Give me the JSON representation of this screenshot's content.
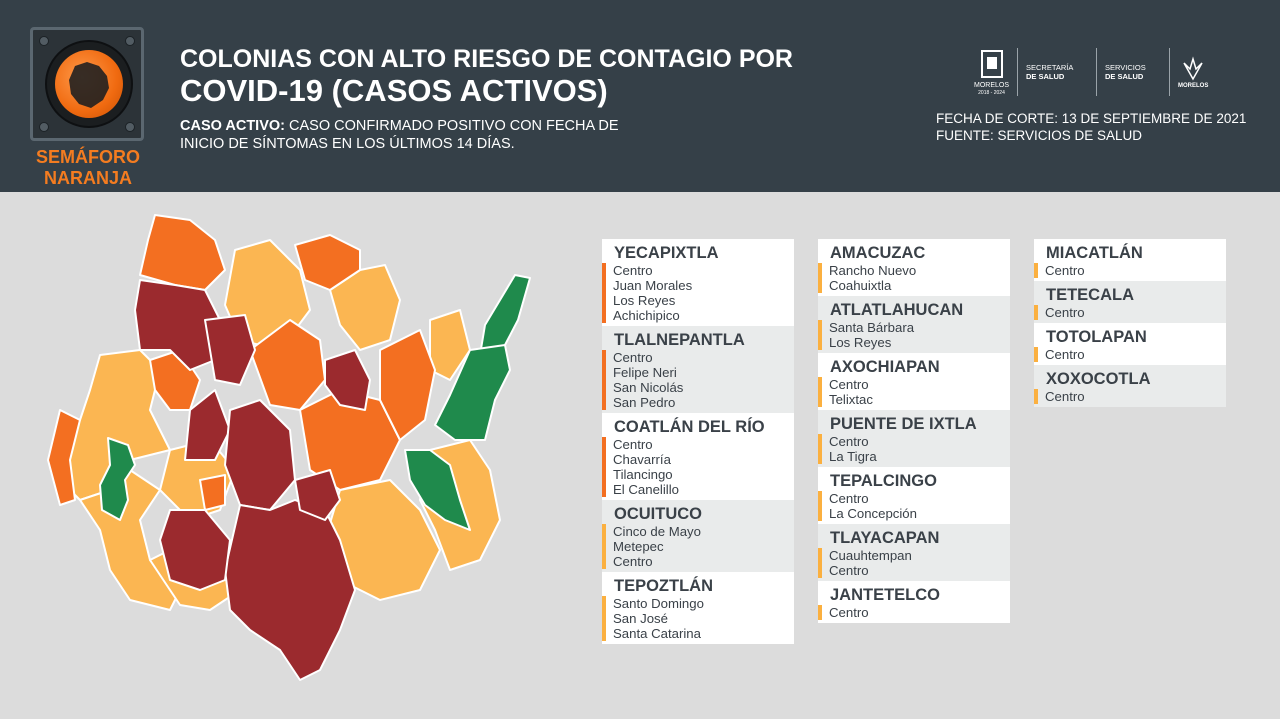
{
  "header": {
    "semaforo_label_1": "SEMÁFORO",
    "semaforo_label_2": "NARANJA",
    "title_line1": "COLONIAS CON ALTO RIESGO DE CONTAGIO POR",
    "title_line2": "COVID-19 (CASOS ACTIVOS)",
    "desc_bold": "CASO ACTIVO:",
    "desc_text_1": " CASO CONFIRMADO POSITIVO CON FECHA DE",
    "desc_text_2": "INICIO DE SÍNTOMAS EN LOS ÚLTIMOS 14 DÍAS.",
    "fecha": "FECHA DE CORTE: 13 DE SEPTIEMBRE DE 2021",
    "fuente": "FUENTE: SERVICIOS DE SALUD",
    "logos": {
      "morelos": "MORELOS",
      "morelos_years": "2018 - 2024",
      "secretaria_1": "SECRETARÍA",
      "secretaria_2": "DE SALUD",
      "servicios_1": "SERVICIOS",
      "servicios_2": "DE SALUD",
      "morelos2": "MORELOS"
    }
  },
  "colors": {
    "header_bg": "#354048",
    "semaforo_orange": "#f47c20",
    "map_dark_red": "#9b2a2e",
    "map_orange": "#f36f21",
    "map_yellow": "#fbb652",
    "map_green": "#1f8a4c"
  },
  "municipios_col1": [
    {
      "name": "YECAPIXTLA",
      "color": "orange",
      "colonias": [
        "Centro",
        "Juan Morales",
        "Los Reyes",
        "Achichipico"
      ]
    },
    {
      "name": "TLALNEPANTLA",
      "color": "orange",
      "colonias": [
        "Centro",
        "Felipe Neri",
        "San Nicolás",
        "San Pedro"
      ]
    },
    {
      "name": "COATLÁN DEL RÍO",
      "color": "orange",
      "colonias": [
        "Centro",
        "Chavarría",
        "Tilancingo",
        "El Canelillo"
      ]
    },
    {
      "name": "OCUITUCO",
      "color": "yellow",
      "colonias": [
        "Cinco de Mayo",
        "Metepec",
        "Centro"
      ]
    },
    {
      "name": "TEPOZTLÁN",
      "color": "yellow",
      "colonias": [
        "Santo Domingo",
        "San José",
        "Santa Catarina"
      ]
    }
  ],
  "municipios_col2": [
    {
      "name": "AMACUZAC",
      "color": "yellow",
      "colonias": [
        "Rancho Nuevo",
        "Coahuixtla"
      ]
    },
    {
      "name": "ATLATLAHUCAN",
      "color": "yellow",
      "colonias": [
        "Santa Bárbara",
        "Los Reyes"
      ]
    },
    {
      "name": "AXOCHIAPAN",
      "color": "yellow",
      "colonias": [
        "Centro",
        "Telixtac"
      ]
    },
    {
      "name": "PUENTE DE IXTLA",
      "color": "yellow",
      "colonias": [
        "Centro",
        "La Tigra"
      ]
    },
    {
      "name": "TEPALCINGO",
      "color": "yellow",
      "colonias": [
        "Centro",
        "La Concepción"
      ]
    },
    {
      "name": "TLAYACAPAN",
      "color": "yellow",
      "colonias": [
        "Cuauhtempan",
        "Centro"
      ]
    },
    {
      "name": "JANTETELCO",
      "color": "yellow",
      "colonias": [
        "Centro"
      ]
    }
  ],
  "municipios_col3": [
    {
      "name": "MIACATLÁN",
      "color": "yellow",
      "colonias": [
        "Centro"
      ]
    },
    {
      "name": "TETECALA",
      "color": "yellow",
      "colonias": [
        "Centro"
      ]
    },
    {
      "name": "TOTOLAPAN",
      "color": "yellow",
      "colonias": [
        "Centro"
      ]
    },
    {
      "name": "XOXOCOTLA",
      "color": "yellow",
      "colonias": [
        "Centro"
      ]
    }
  ]
}
